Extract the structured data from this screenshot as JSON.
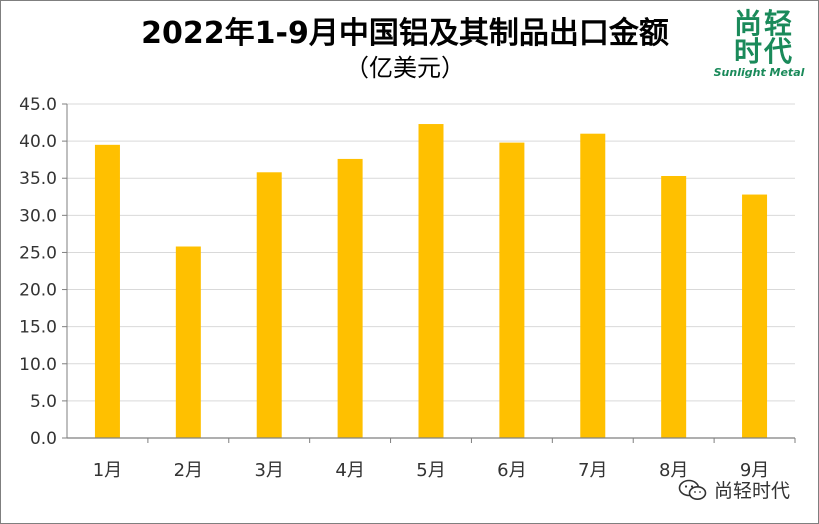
{
  "header": {
    "title": "2022年1-9月中国铝及其制品出口金额",
    "subtitle": "（亿美元）"
  },
  "logo": {
    "cn_line1": "尚轻",
    "cn_line2": "时代",
    "en": "Sunlight Metal",
    "color": "#1a8a5a"
  },
  "watermark": {
    "icon": "wechat-icon",
    "text": "尚轻时代"
  },
  "chart_data": {
    "type": "bar",
    "categories": [
      "1月",
      "2月",
      "3月",
      "4月",
      "5月",
      "6月",
      "7月",
      "8月",
      "9月"
    ],
    "values": [
      39.5,
      25.8,
      35.8,
      37.6,
      42.3,
      39.8,
      41.0,
      35.3,
      32.8
    ],
    "ylim": [
      0,
      45
    ],
    "ytick_step": 5,
    "ytick_labels": [
      "0.0",
      "5.0",
      "10.0",
      "15.0",
      "20.0",
      "25.0",
      "30.0",
      "35.0",
      "40.0",
      "45.0"
    ],
    "grid": true,
    "bar_color": "#ffc000",
    "grid_color": "#d9d9d9",
    "axis_color": "#7f7f7f"
  }
}
